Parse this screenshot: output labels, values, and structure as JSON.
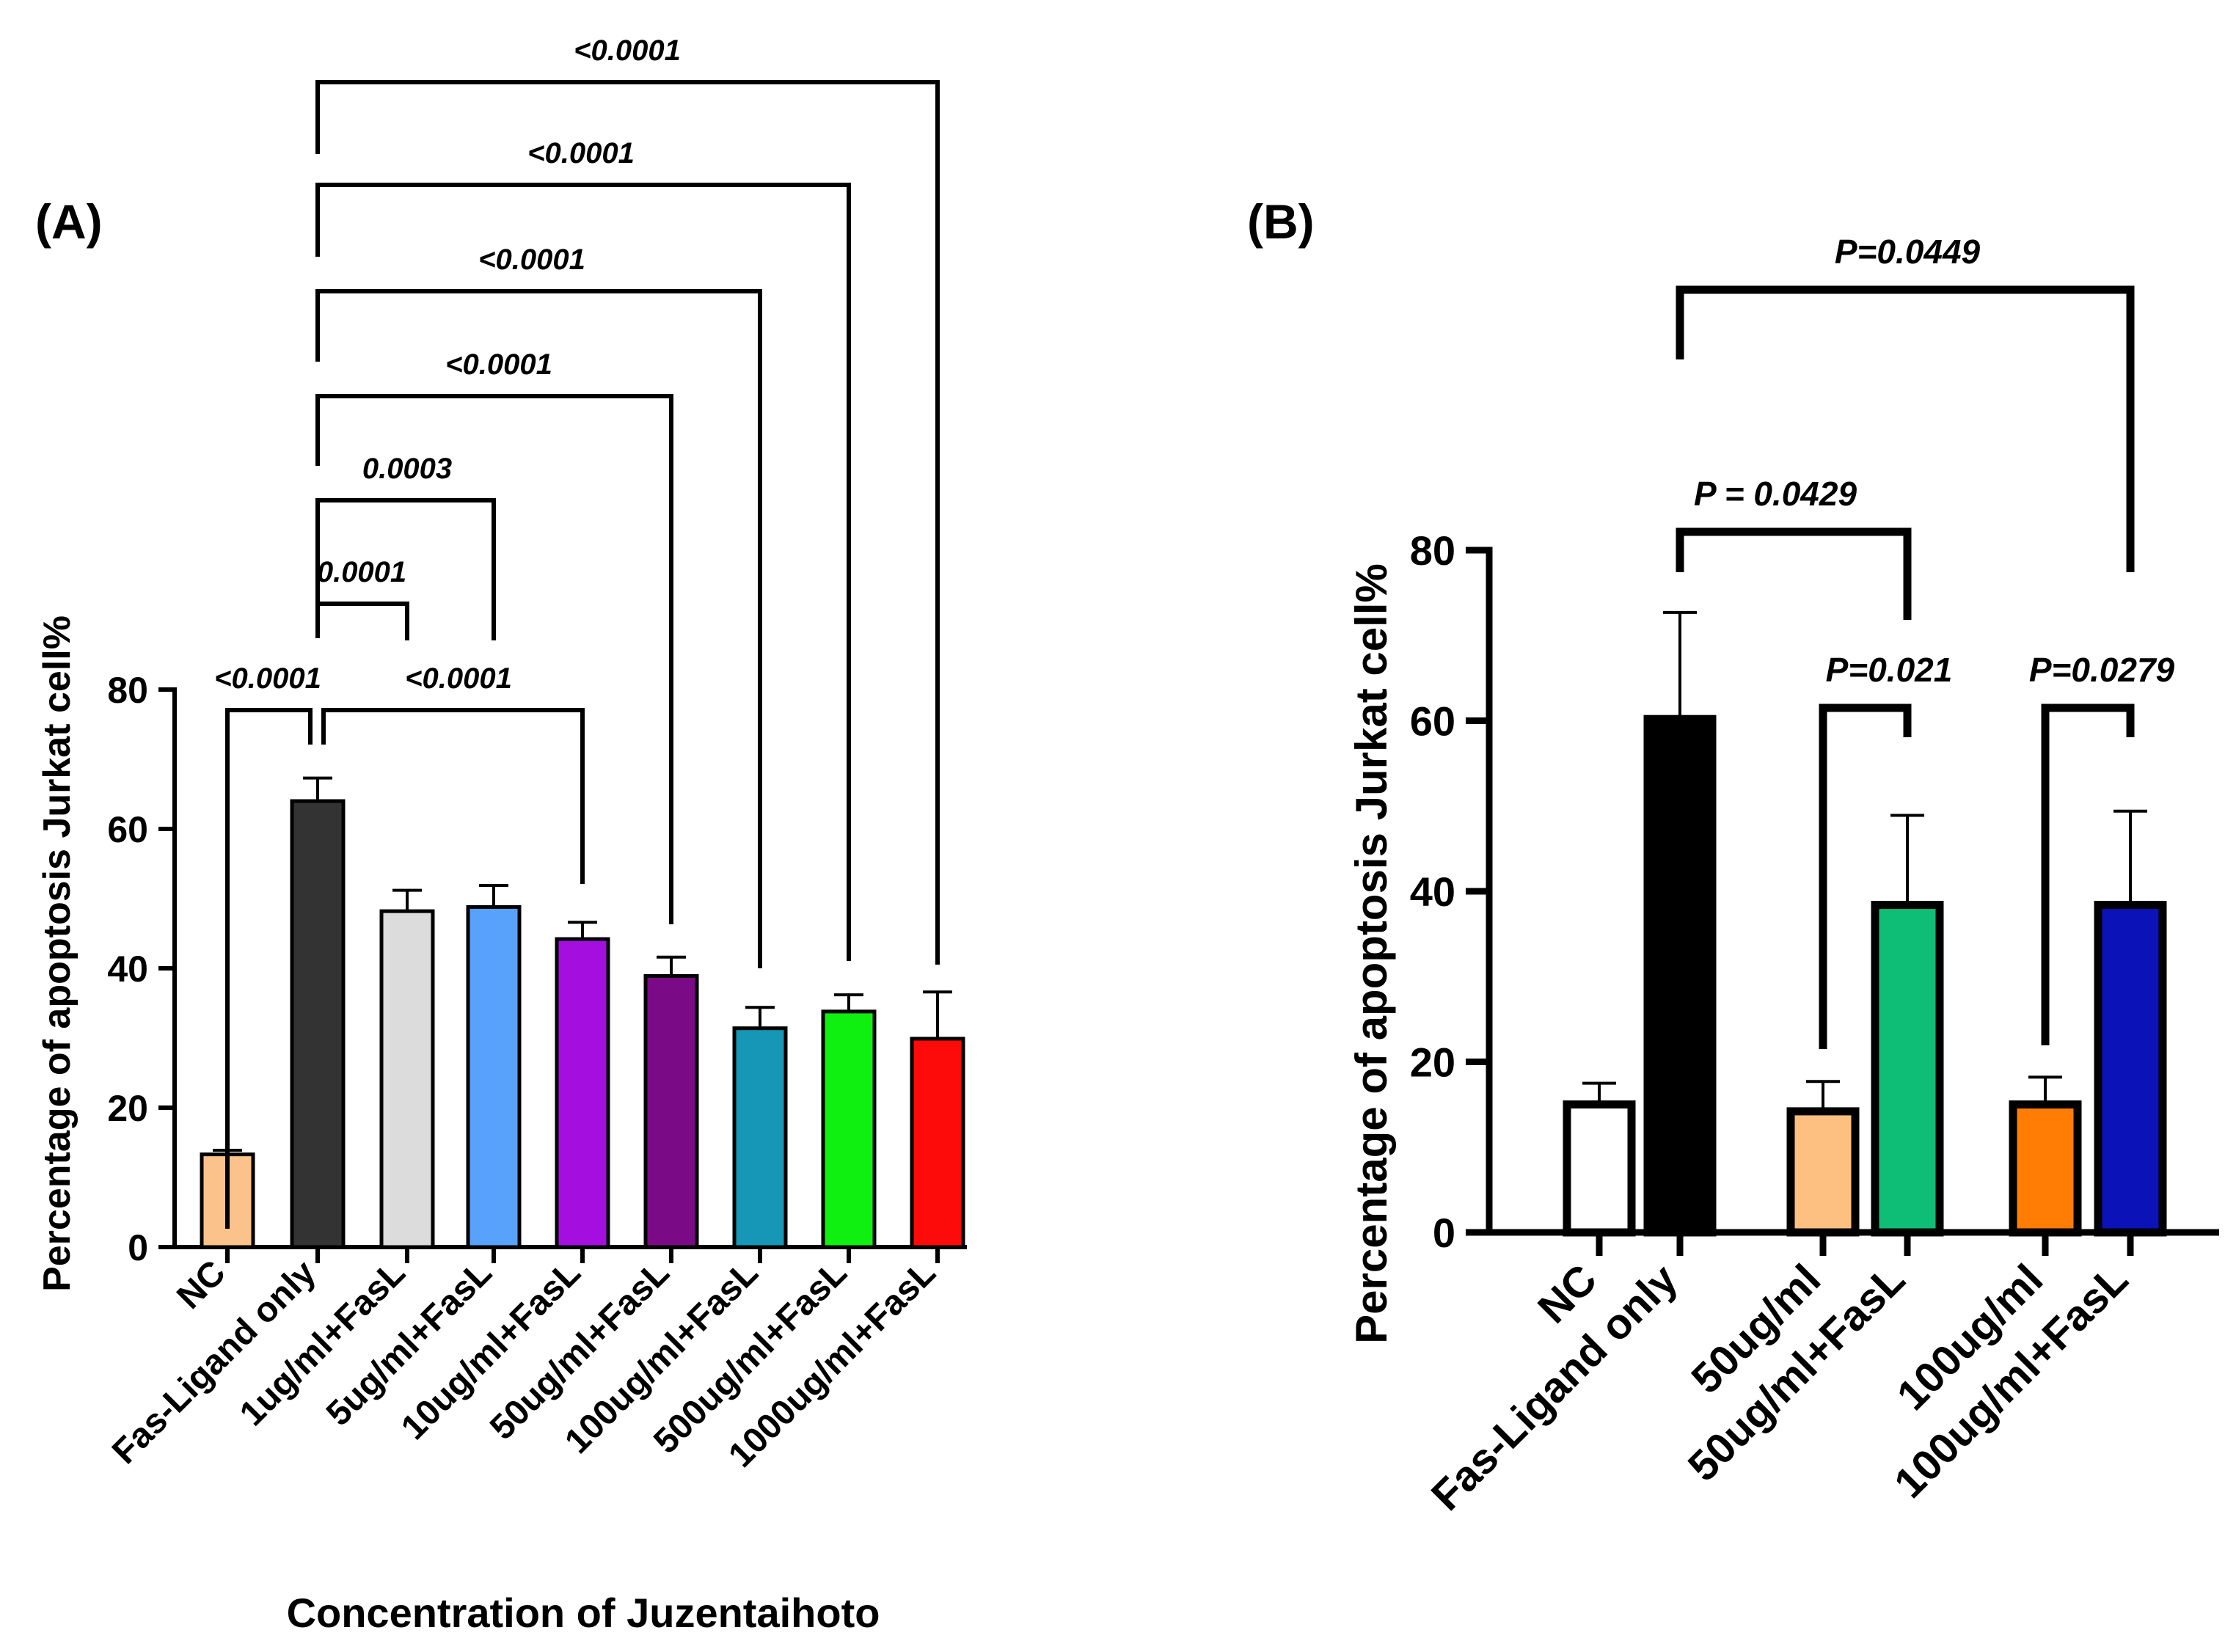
{
  "chart_data": [
    {
      "type": "bar",
      "panel_label": "(A)",
      "categories": [
        "NC",
        "Fas-Ligand only",
        "1ug/ml+FasL",
        "5ug/ml+FasL",
        "10ug/ml+FasL",
        "50ug/ml+FasL",
        "100ug/ml+FasL",
        "500ug/ml+FasL",
        "1000ug/ml+FasL"
      ],
      "values": [
        13.3,
        64,
        48.2,
        48.8,
        44.2,
        38.9,
        31.4,
        33.8,
        29.9
      ],
      "errors": [
        0.6,
        3.3,
        3.0,
        3.1,
        2.4,
        2.7,
        3.0,
        2.4,
        6.7
      ],
      "colors": [
        "#FBC28C",
        "#333333",
        "#DCDCDC",
        "#58A2FB",
        "#A40FE0",
        "#7B0A86",
        "#1597B5",
        "#10F010",
        "#FD0B0B"
      ],
      "title": "",
      "xlabel": "Concentration of Juzentaihoto",
      "ylabel": "Percentage of apoptosis Jurkat cell%",
      "ylim": [
        0,
        80
      ],
      "yticks": [
        "0",
        "20",
        "40",
        "60",
        "80"
      ],
      "comparisons": [
        {
          "from": 0,
          "to": 1,
          "label": "<0.0001"
        },
        {
          "from": 1,
          "to": 2,
          "label": "0.0001"
        },
        {
          "from": 1,
          "to": 3,
          "label": "0.0003"
        },
        {
          "from": 1,
          "to": 4,
          "label": "<0.0001"
        },
        {
          "from": 1,
          "to": 5,
          "label": "<0.0001"
        },
        {
          "from": 1,
          "to": 6,
          "label": "<0.0001"
        },
        {
          "from": 1,
          "to": 7,
          "label": "<0.0001"
        },
        {
          "from": 1,
          "to": 8,
          "label": "<0.0001"
        }
      ]
    },
    {
      "type": "bar",
      "panel_label": "(B)",
      "categories": [
        "NC",
        "Fas-Ligand only",
        "50ug/ml",
        "50ug/ml+FasL",
        "100ug/ml",
        "100ug/ml+FasL"
      ],
      "values": [
        15.0,
        60.2,
        14.2,
        38.4,
        15.0,
        38.4
      ],
      "errors": [
        2.5,
        12.5,
        3.5,
        10.5,
        3.2,
        11.0
      ],
      "colors": [
        "#FFFFFF",
        "#000000",
        "#FEC080",
        "#0FBE76",
        "#FF7D04",
        "#0B12B8"
      ],
      "title": "",
      "xlabel": "",
      "ylabel": "Percentage of apoptosis Jurkat cell%",
      "ylim": [
        0,
        80
      ],
      "yticks": [
        "0",
        "20",
        "40",
        "60",
        "80"
      ],
      "comparisons": [
        {
          "from": 1,
          "to": 5,
          "label": "P=0.0449"
        },
        {
          "from": 1,
          "to": 3,
          "label": "P = 0.0429"
        },
        {
          "from": 2,
          "to": 3,
          "label": "P=0.021"
        },
        {
          "from": 4,
          "to": 5,
          "label": "P=0.0279"
        }
      ]
    }
  ]
}
